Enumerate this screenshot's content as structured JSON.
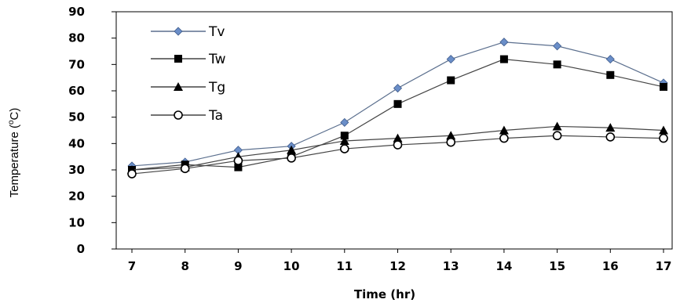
{
  "chart_data": {
    "type": "line",
    "xlabel": "Time (hr)",
    "ylabel": "Temperature (",
    "ylabel_sup": "o",
    "ylabel_unit": "C)",
    "ylim": [
      0,
      90
    ],
    "ytick_step": 10,
    "x": [
      7,
      8,
      9,
      10,
      11,
      12,
      13,
      14,
      15,
      16,
      17
    ],
    "grid": false,
    "legend_position": "top-left",
    "series": [
      {
        "name": "Tv",
        "marker": "diamond",
        "color": "#6a8ec8",
        "line_color": "#5b6f8e",
        "values": [
          31.5,
          33,
          37.5,
          39,
          48,
          61,
          72,
          78.5,
          77,
          72,
          63
        ]
      },
      {
        "name": "Tw",
        "marker": "square",
        "color": "#000000",
        "line_color": "#444444",
        "values": [
          30,
          32,
          31,
          35,
          43,
          55,
          64,
          72,
          70,
          66,
          61.5
        ]
      },
      {
        "name": "Tg",
        "marker": "triangle",
        "color": "#000000",
        "line_color": "#444444",
        "values": [
          30,
          31,
          35,
          37.5,
          41,
          42,
          43,
          45,
          46.5,
          46,
          45
        ]
      },
      {
        "name": "Ta",
        "marker": "circle",
        "color": "#ffffff",
        "line_color": "#444444",
        "values": [
          28.5,
          30.5,
          33.5,
          34.5,
          38,
          39.5,
          40.5,
          42,
          43,
          42.5,
          42
        ]
      }
    ]
  }
}
